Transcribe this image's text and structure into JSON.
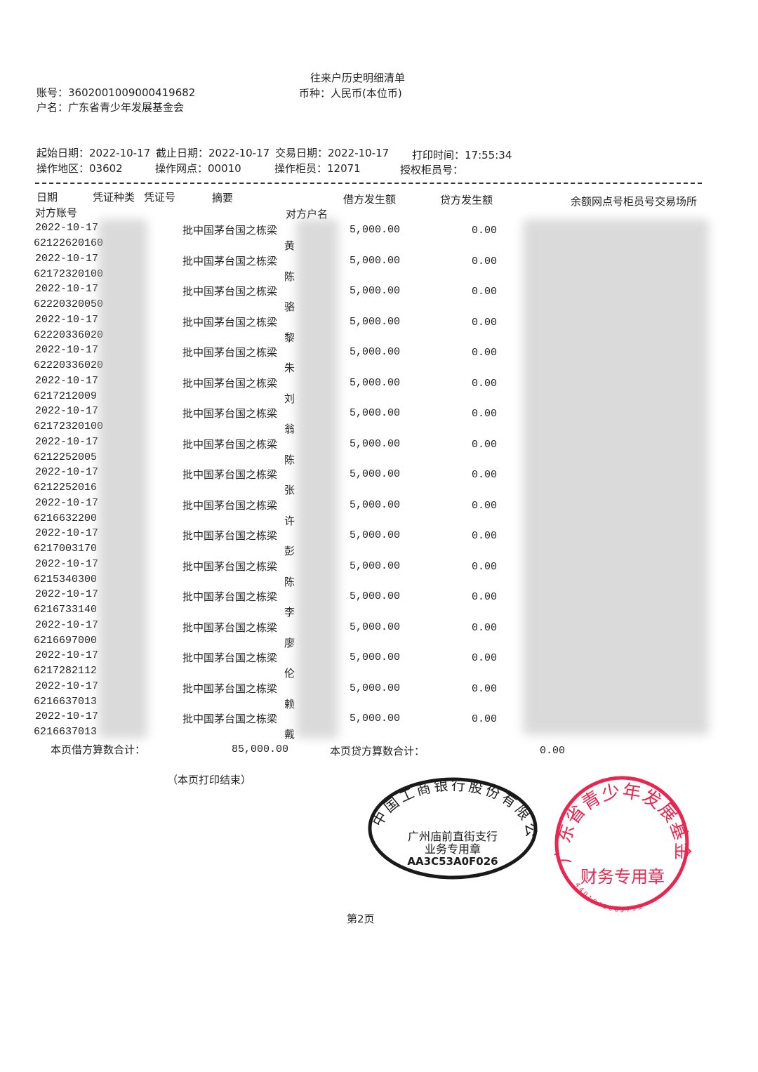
{
  "title": "往来户历史明细清单",
  "account_no": "账号：3602001009000419682",
  "account_name": "户名：广东省青少年发展基金会",
  "currency": "币种：人民币(本位币)",
  "meta": {
    "start_date": "起始日期：2022-10-17",
    "end_date": "截止日期：2022-10-17",
    "trade_date": "交易日期：2022-10-17",
    "print_time": "打印时间：17:55:34",
    "region": "操作地区：03602",
    "branch": "操作网点：00010",
    "teller": "操作柜员：12071",
    "auth_teller": "授权柜员号："
  },
  "headers": {
    "date": "日期",
    "voucher_type": "凭证种类",
    "voucher_no": "凭证号",
    "summary": "摘要",
    "debit": "借方发生额",
    "credit": "贷方发生额",
    "balance_etc": "余额网点号柜员号交易场所",
    "counter_account": "对方账号",
    "counter_name": "对方户名"
  },
  "rows": [
    {
      "date": "2022-10-17",
      "account": "62122620160",
      "summary": "批中国茅台国之栋梁",
      "name": "黄",
      "debit": "5,000.00",
      "credit": "0.00"
    },
    {
      "date": "2022-10-17",
      "account": "62172320100",
      "summary": "批中国茅台国之栋梁",
      "name": "陈",
      "debit": "5,000.00",
      "credit": "0.00"
    },
    {
      "date": "2022-10-17",
      "account": "62220320050",
      "summary": "批中国茅台国之栋梁",
      "name": "骆",
      "debit": "5,000.00",
      "credit": "0.00"
    },
    {
      "date": "2022-10-17",
      "account": "62220336020",
      "summary": "批中国茅台国之栋梁",
      "name": "黎",
      "debit": "5,000.00",
      "credit": "0.00"
    },
    {
      "date": "2022-10-17",
      "account": "62220336020",
      "summary": "批中国茅台国之栋梁",
      "name": "朱",
      "debit": "5,000.00",
      "credit": "0.00"
    },
    {
      "date": "2022-10-17",
      "account": "6217212009",
      "summary": "批中国茅台国之栋梁",
      "name": "刘",
      "debit": "5,000.00",
      "credit": "0.00"
    },
    {
      "date": "2022-10-17",
      "account": "62172320100",
      "summary": "批中国茅台国之栋梁",
      "name": "翁",
      "debit": "5,000.00",
      "credit": "0.00"
    },
    {
      "date": "2022-10-17",
      "account": "6212252005",
      "summary": "批中国茅台国之栋梁",
      "name": "陈",
      "debit": "5,000.00",
      "credit": "0.00"
    },
    {
      "date": "2022-10-17",
      "account": "6212252016",
      "summary": "批中国茅台国之栋梁",
      "name": "张",
      "debit": "5,000.00",
      "credit": "0.00"
    },
    {
      "date": "2022-10-17",
      "account": "6216632200",
      "summary": "批中国茅台国之栋梁",
      "name": "许",
      "debit": "5,000.00",
      "credit": "0.00"
    },
    {
      "date": "2022-10-17",
      "account": "6217003170",
      "summary": "批中国茅台国之栋梁",
      "name": "彭",
      "debit": "5,000.00",
      "credit": "0.00"
    },
    {
      "date": "2022-10-17",
      "account": "6215340300",
      "summary": "批中国茅台国之栋梁",
      "name": "陈",
      "debit": "5,000.00",
      "credit": "0.00"
    },
    {
      "date": "2022-10-17",
      "account": "6216733140",
      "summary": "批中国茅台国之栋梁",
      "name": "李",
      "debit": "5,000.00",
      "credit": "0.00"
    },
    {
      "date": "2022-10-17",
      "account": "6216697000",
      "summary": "批中国茅台国之栋梁",
      "name": "廖",
      "debit": "5,000.00",
      "credit": "0.00"
    },
    {
      "date": "2022-10-17",
      "account": "6217282112",
      "summary": "批中国茅台国之栋梁",
      "name": "伦",
      "debit": "5,000.00",
      "credit": "0.00"
    },
    {
      "date": "2022-10-17",
      "account": "6216637013",
      "summary": "批中国茅台国之栋梁",
      "name": "赖",
      "debit": "5,000.00",
      "credit": "0.00"
    },
    {
      "date": "2022-10-17",
      "account": "6216637013",
      "summary": "批中国茅台国之栋梁",
      "name": "戴",
      "debit": "5,000.00",
      "credit": "0.00"
    }
  ],
  "totals": {
    "debit_label": "本页借方算数合计：",
    "debit_value": "85,000.00",
    "credit_label": "本页贷方算数合计：",
    "credit_value": "0.00"
  },
  "end_note": "（本页打印结束）",
  "page_no": "第2页",
  "stamps": {
    "bank": {
      "arc": "中国工商银行股份有限公司",
      "line1": "广州庙前直街支行",
      "line2": "业务专用章",
      "code": "AA3C53A0F026",
      "color": "#1a1a1a"
    },
    "foundation": {
      "arc": "广东省青少年发展基金会",
      "center": "财务专用章",
      "code": "4401040069795",
      "color": "#e8264f"
    }
  }
}
